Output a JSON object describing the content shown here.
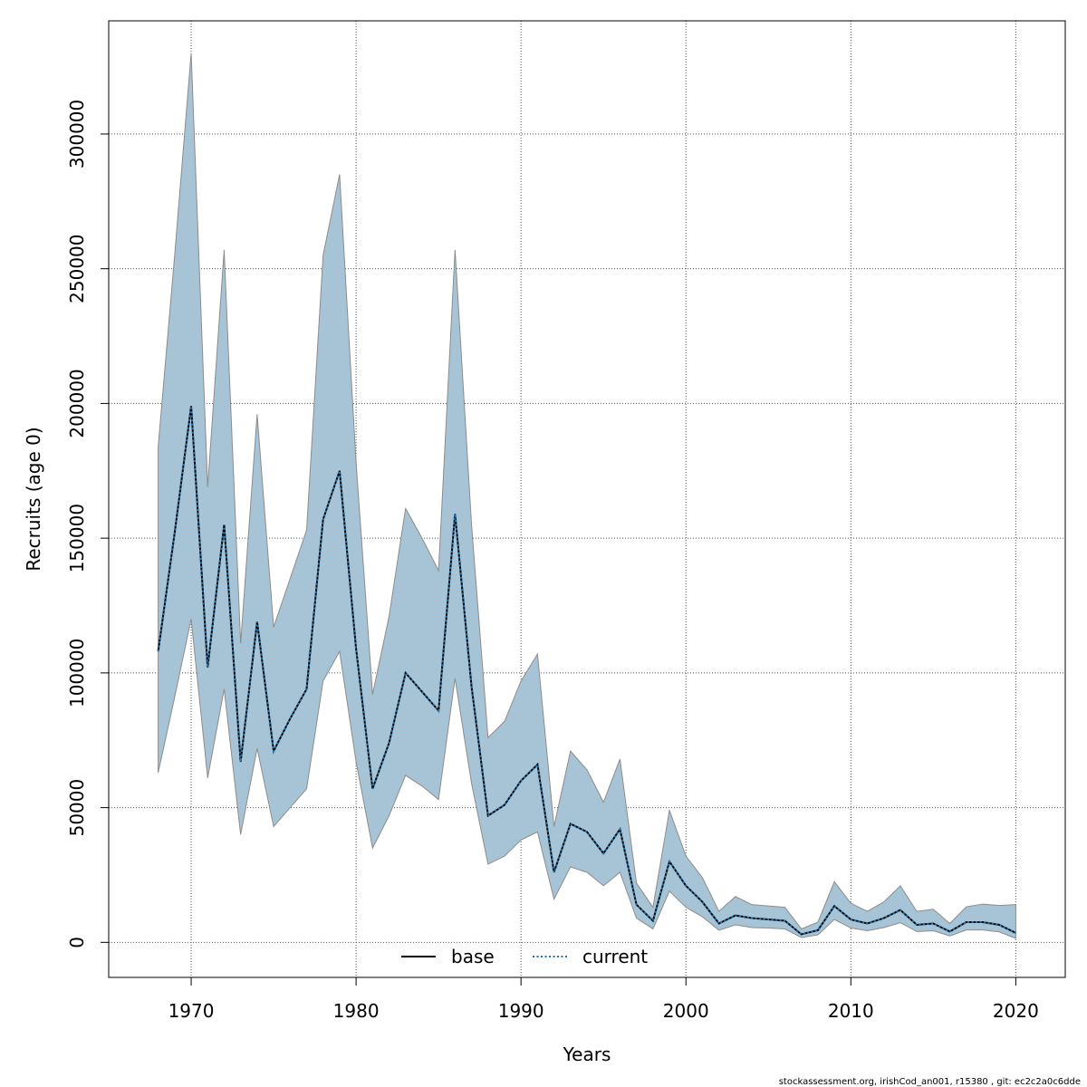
{
  "chart_data": {
    "type": "line",
    "xlabel": "Years",
    "ylabel": "Recruits (age 0)",
    "xlim": [
      1965,
      2023
    ],
    "ylim": [
      -13000,
      342000
    ],
    "xticks": [
      1970,
      1980,
      1990,
      2000,
      2010,
      2020
    ],
    "yticks": [
      0,
      50000,
      100000,
      150000,
      200000,
      250000,
      300000
    ],
    "grid": true,
    "legend_position": "bottom-center",
    "x": [
      1968,
      1969,
      1970,
      1971,
      1972,
      1973,
      1974,
      1975,
      1976,
      1977,
      1978,
      1979,
      1980,
      1981,
      1982,
      1983,
      1984,
      1985,
      1986,
      1987,
      1988,
      1989,
      1990,
      1991,
      1992,
      1993,
      1994,
      1995,
      1996,
      1997,
      1998,
      1999,
      2000,
      2001,
      2002,
      2003,
      2004,
      2005,
      2006,
      2007,
      2008,
      2009,
      2010,
      2011,
      2012,
      2013,
      2014,
      2015,
      2016,
      2017,
      2018,
      2019,
      2020
    ],
    "series": [
      {
        "name": "base",
        "line_style": "solid",
        "color": "#000000",
        "values": [
          108000,
          152000,
          199000,
          102000,
          155000,
          67000,
          119000,
          71000,
          83000,
          94000,
          157000,
          175000,
          109000,
          57000,
          74000,
          100000,
          93000,
          86000,
          159000,
          95000,
          47000,
          51000,
          60000,
          66000,
          26000,
          44000,
          41000,
          33000,
          42000,
          14000,
          8000,
          30000,
          21000,
          15000,
          7000,
          10000,
          9000,
          8500,
          8000,
          3000,
          4500,
          13500,
          8500,
          7000,
          9000,
          12000,
          6500,
          7000,
          4000,
          7500,
          7500,
          6500,
          3500
        ]
      },
      {
        "name": "current",
        "line_style": "dotted",
        "color": "#1f77b4",
        "values": [
          108000,
          152000,
          199000,
          102000,
          155000,
          67000,
          119000,
          71000,
          83000,
          94000,
          157000,
          175000,
          109000,
          57000,
          74000,
          100000,
          93000,
          86000,
          159000,
          95000,
          47000,
          51000,
          60000,
          66000,
          26000,
          44000,
          41000,
          33000,
          42000,
          14000,
          8000,
          30000,
          21000,
          15000,
          7000,
          10000,
          9000,
          8500,
          8000,
          3000,
          4500,
          13500,
          8500,
          7000,
          9000,
          12000,
          6500,
          7000,
          4000,
          7500,
          7500,
          6500,
          3500
        ]
      }
    ],
    "confidence_band": {
      "color": "#a6c4d5",
      "lower": [
        63000,
        91000,
        120000,
        61000,
        94000,
        40000,
        72000,
        43000,
        50000,
        57000,
        97000,
        108000,
        67000,
        35000,
        47000,
        62000,
        58000,
        53000,
        98000,
        59000,
        29000,
        32000,
        38000,
        41000,
        16000,
        28000,
        26000,
        21000,
        26000,
        9000,
        5000,
        19000,
        13000,
        9500,
        4500,
        6500,
        5500,
        5300,
        5000,
        1800,
        2800,
        8500,
        5300,
        4300,
        5500,
        7300,
        4000,
        4300,
        2400,
        4600,
        4600,
        3900,
        1500
      ],
      "upper": [
        184000,
        255000,
        330000,
        169000,
        257000,
        111000,
        196000,
        117000,
        135000,
        153000,
        255000,
        285000,
        178000,
        92000,
        121000,
        161000,
        150000,
        138000,
        257000,
        155000,
        76000,
        82000,
        97000,
        107000,
        43000,
        71000,
        64000,
        52000,
        68000,
        22000,
        13000,
        49000,
        32000,
        24000,
        11500,
        17000,
        14000,
        13500,
        13000,
        5000,
        7500,
        22500,
        14500,
        11500,
        15000,
        21000,
        11500,
        12300,
        7000,
        13200,
        14200,
        13700,
        14000
      ]
    }
  },
  "footer": "stockassessment.org, irishCod_an001, r15380 , git: ec2c2a0c6dde"
}
